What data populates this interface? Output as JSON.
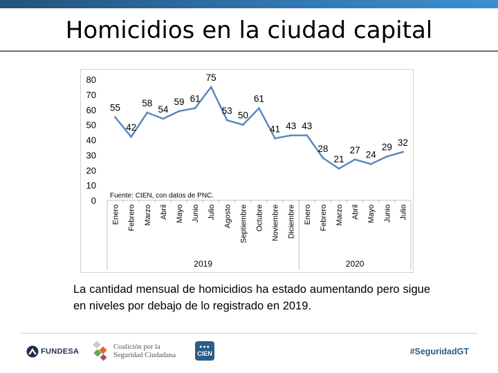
{
  "slide": {
    "title": "Homicidios en la ciudad capital",
    "body_text": "La cantidad mensual de homicidios ha estado aumentando pero sigue en niveles por debajo de lo registrado en 2019.",
    "source_note": "Fuente: CIEN, con datos de PNC.",
    "footer": {
      "fundesa": "FUNDESA",
      "coalicion_line1": "Coalición por la",
      "coalicion_line2": "Seguridad Ciudadana",
      "cien": "CIEN",
      "hashtag": "#SeguridadGT"
    }
  },
  "colors": {
    "line": "#5b88bf",
    "topbar": "#2f6fa5",
    "brand": "#2a5d8a"
  },
  "chart_data": {
    "type": "line",
    "title": "",
    "xlabel": "",
    "ylabel": "",
    "ylim": [
      0,
      80
    ],
    "yticks": [
      0,
      10,
      20,
      30,
      40,
      50,
      60,
      70,
      80
    ],
    "grid": false,
    "groups": [
      {
        "label": "2019",
        "count": 12
      },
      {
        "label": "2020",
        "count": 7
      }
    ],
    "categories": [
      "Enero",
      "Febrero",
      "Marzo",
      "Abril",
      "Mayo",
      "Junio",
      "Julio",
      "Agosto",
      "Septiembre",
      "Octubre",
      "Noviembre",
      "Diciembre",
      "Enero",
      "Febrero",
      "Marzo",
      "Abril",
      "Mayo",
      "Junio",
      "Julio"
    ],
    "series": [
      {
        "name": "Homicidios",
        "values": [
          55,
          42,
          58,
          54,
          59,
          61,
          75,
          53,
          50,
          61,
          41,
          43,
          43,
          28,
          21,
          27,
          24,
          29,
          32
        ]
      }
    ]
  }
}
